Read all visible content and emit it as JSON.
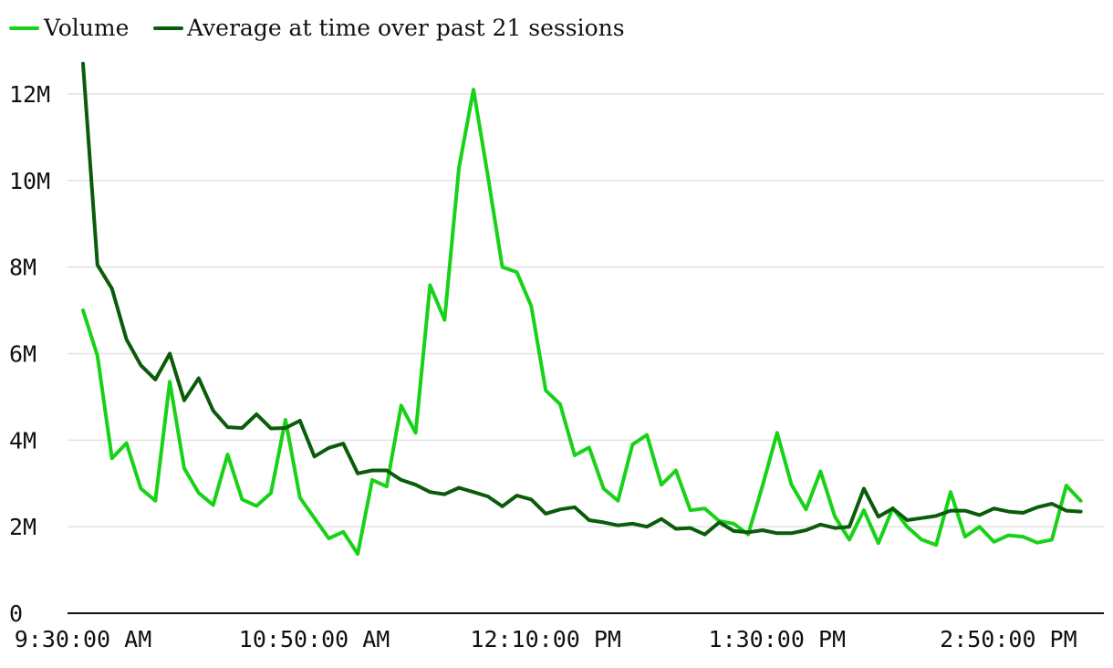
{
  "legend": {
    "volume_label": "Volume",
    "average_label": "Average at time over past 21 sessions"
  },
  "colors": {
    "volume": "#17d217",
    "average": "#0a5c0a"
  },
  "chart_data": {
    "type": "line",
    "x_tick_labels": [
      "9:30:00 AM",
      "10:50:00 AM",
      "12:10:00 PM",
      "1:30:00 PM",
      "2:50:00 PM"
    ],
    "y_tick_labels": [
      "0",
      "2M",
      "4M",
      "6M",
      "8M",
      "10M",
      "12M"
    ],
    "y_ticks": [
      0,
      2000000,
      4000000,
      6000000,
      8000000,
      10000000,
      12000000
    ],
    "ylim": [
      0,
      12800000
    ],
    "grid": true,
    "legend_position": "top-left",
    "x_start": "9:30:00 AM",
    "x_interval": "5 min",
    "x_tick_every": 16,
    "series": [
      {
        "name": "Volume",
        "values": [
          7.0,
          5.95,
          3.58,
          3.93,
          2.88,
          2.6,
          5.35,
          3.35,
          2.78,
          2.5,
          3.67,
          2.63,
          2.48,
          2.78,
          4.47,
          2.67,
          2.2,
          1.73,
          1.88,
          1.37,
          3.08,
          2.93,
          4.8,
          4.17,
          7.58,
          6.78,
          10.3,
          12.1,
          10.1,
          8.0,
          7.88,
          7.1,
          5.15,
          4.83,
          3.65,
          3.83,
          2.88,
          2.6,
          3.9,
          4.12,
          2.97,
          3.3,
          2.38,
          2.42,
          2.13,
          2.07,
          1.82,
          2.95,
          4.17,
          2.97,
          2.4,
          3.28,
          2.23,
          1.7,
          2.38,
          1.62,
          2.43,
          2.0,
          1.7,
          1.58,
          2.8,
          1.77,
          2.0,
          1.65,
          1.8,
          1.77,
          1.63,
          1.7,
          2.95,
          2.6
        ]
      },
      {
        "name": "Average at time over past 21 sessions",
        "values": [
          12.7,
          8.05,
          7.5,
          6.33,
          5.73,
          5.4,
          6.0,
          4.92,
          5.43,
          4.68,
          4.3,
          4.28,
          4.6,
          4.27,
          4.28,
          4.45,
          3.62,
          3.82,
          3.92,
          3.23,
          3.3,
          3.3,
          3.08,
          2.97,
          2.8,
          2.75,
          2.9,
          2.8,
          2.7,
          2.47,
          2.72,
          2.63,
          2.3,
          2.4,
          2.45,
          2.15,
          2.1,
          2.03,
          2.07,
          2.0,
          2.18,
          1.95,
          1.97,
          1.82,
          2.1,
          1.9,
          1.87,
          1.92,
          1.85,
          1.85,
          1.92,
          2.05,
          1.97,
          2.0,
          2.88,
          2.23,
          2.42,
          2.15,
          2.2,
          2.25,
          2.37,
          2.37,
          2.27,
          2.42,
          2.35,
          2.32,
          2.45,
          2.53,
          2.37,
          2.35
        ]
      }
    ]
  }
}
